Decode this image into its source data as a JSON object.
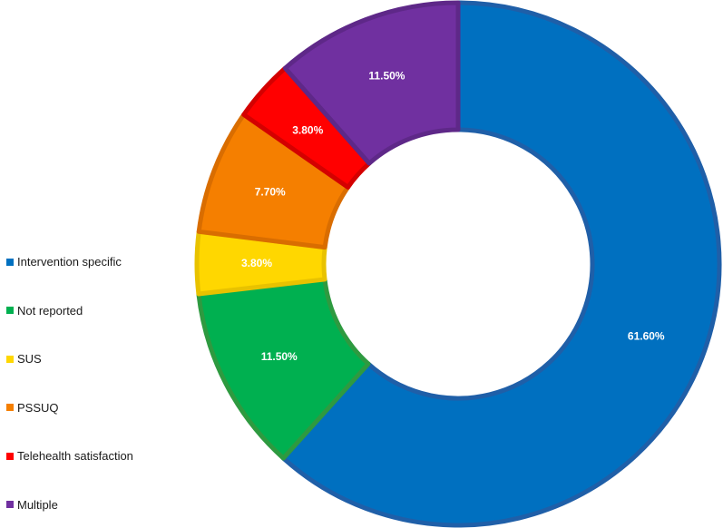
{
  "chart_data": {
    "type": "pie",
    "title": "",
    "legend_position": "left",
    "slices": [
      {
        "name": "Intervention specific",
        "value": 61.6,
        "label": "61.60%",
        "color": "#0070C0",
        "edge": "#1F5FA8"
      },
      {
        "name": "Not reported",
        "value": 11.5,
        "label": "11.50%",
        "color": "#00B050",
        "edge": "#2E9A40"
      },
      {
        "name": "SUS",
        "value": 3.8,
        "label": "3.80%",
        "color": "#FFD700",
        "edge": "#E8C200"
      },
      {
        "name": "PSSUQ",
        "value": 7.7,
        "label": "7.70%",
        "color": "#F57F00",
        "edge": "#D96D00"
      },
      {
        "name": "Telehealth satisfaction",
        "value": 3.8,
        "label": "3.80%",
        "color": "#FF0000",
        "edge": "#D40000"
      },
      {
        "name": "Multiple",
        "value": 11.5,
        "label": "11.50%",
        "color": "#7030A0",
        "edge": "#5E2888"
      }
    ]
  }
}
